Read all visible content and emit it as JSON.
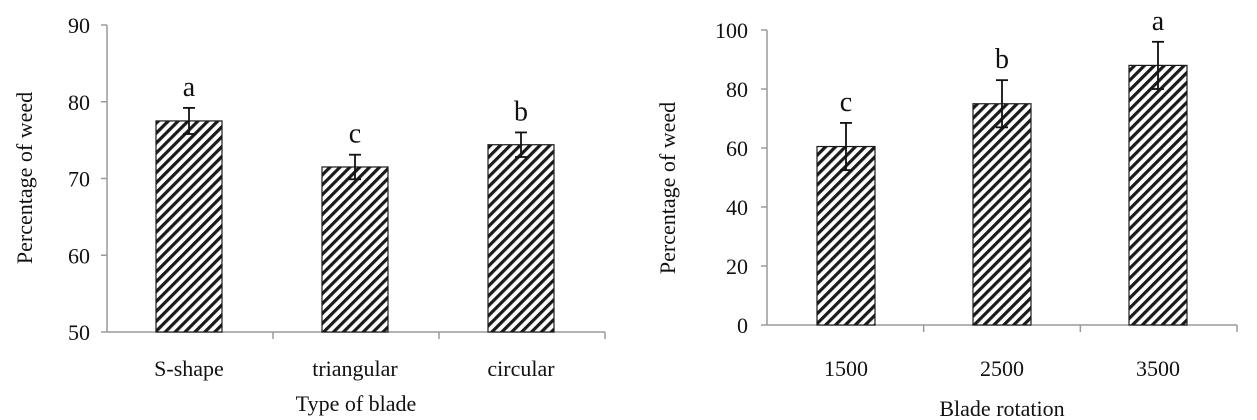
{
  "chart_data": [
    {
      "type": "bar",
      "categories": [
        "S-shape",
        "triangular",
        "circular"
      ],
      "values": [
        77.5,
        71.5,
        74.4
      ],
      "errors": [
        1.7,
        1.6,
        1.6
      ],
      "labels": [
        "a",
        "c",
        "b"
      ],
      "title": "",
      "xlabel": "Type of blade",
      "ylabel": "Percentage of weed",
      "ylim": [
        50,
        90
      ],
      "yticks": [
        "50",
        "60",
        "70",
        "80",
        "90"
      ],
      "bar_pattern": "diagonal-hatch",
      "grid": false
    },
    {
      "type": "bar",
      "categories": [
        "1500",
        "2500",
        "3500"
      ],
      "values": [
        60.5,
        75,
        88
      ],
      "errors": [
        8,
        8,
        8
      ],
      "labels": [
        "c",
        "b",
        "a"
      ],
      "title": "",
      "xlabel": "Blade rotation",
      "ylabel": "Percentage of weed",
      "ylim": [
        0,
        100
      ],
      "yticks": [
        "0",
        "20",
        "40",
        "60",
        "80",
        "100"
      ],
      "bar_pattern": "diagonal-hatch",
      "grid": false
    }
  ]
}
